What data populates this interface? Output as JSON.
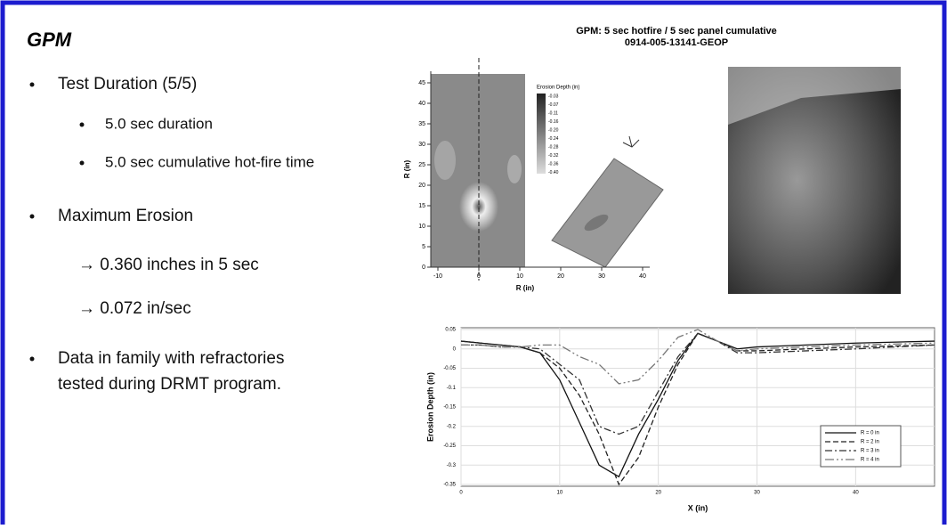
{
  "slide": {
    "title": "GPM",
    "bullets": [
      {
        "text": "Test Duration (5/5)",
        "sub": [
          "5.0 sec duration",
          "5.0 sec cumulative hot-fire time"
        ]
      },
      {
        "text": "Maximum Erosion",
        "sub": [
          "→ 0.360 inches in 5 sec",
          "→ 0.072 in/sec"
        ]
      },
      {
        "text": "Data in family with refractories",
        "cont": "tested during DRMT program."
      }
    ]
  },
  "figure": {
    "title": "GPM: 5 sec hotfire / 5 sec panel cumulative",
    "subtitle": "0914-005-13141-GEOP",
    "contour": {
      "xlabel": "R (in)",
      "ylabel": "R (in)",
      "xticks": [
        -10,
        0,
        10,
        20,
        30,
        40
      ],
      "yticks": [
        0,
        5,
        10,
        15,
        20,
        25,
        30,
        35,
        40,
        45
      ],
      "colorbar_title": "Erosion Depth (in)",
      "colorbar_labels": [
        "-0.03",
        "-0.07",
        "-0.11",
        "-0.16",
        "-0.20",
        "-0.24",
        "-0.28",
        "-0.32",
        "-0.36",
        "-0.40"
      ]
    }
  },
  "chart_data": {
    "type": "line",
    "xlabel": "X (in)",
    "ylabel": "Erosion Depth (in)",
    "x": [
      0,
      2,
      4,
      6,
      8,
      10,
      12,
      14,
      16,
      18,
      20,
      22,
      24,
      26,
      28,
      30,
      35,
      40,
      48
    ],
    "xlim": [
      0,
      48
    ],
    "xticks": [
      0,
      10,
      20,
      30,
      40
    ],
    "ylim": [
      -0.35,
      0.05
    ],
    "yticks": [
      0.05,
      0,
      -0.05,
      -0.1,
      -0.15,
      -0.2,
      -0.25,
      -0.3,
      -0.35
    ],
    "legend": "lower right",
    "grid": true,
    "series": [
      {
        "name": "R = 0 in",
        "color": "#111111",
        "dash": "none",
        "values": [
          0.02,
          0.015,
          0.01,
          0.005,
          -0.01,
          -0.08,
          -0.19,
          -0.3,
          -0.33,
          -0.22,
          -0.13,
          -0.03,
          0.04,
          0.02,
          0,
          0.005,
          0.01,
          0.015,
          0.02
        ]
      },
      {
        "name": "R = 2 in",
        "color": "#222222",
        "dash": "6 3",
        "values": [
          0.02,
          0.015,
          0.01,
          0.005,
          -0.01,
          -0.05,
          -0.12,
          -0.22,
          -0.35,
          -0.28,
          -0.15,
          -0.04,
          0.04,
          0.02,
          -0.005,
          -0.005,
          0,
          0.005,
          0.01
        ]
      },
      {
        "name": "R = 3 in",
        "color": "#333333",
        "dash": "8 3 2 3",
        "values": [
          0.01,
          0.01,
          0.005,
          0.005,
          0,
          -0.04,
          -0.08,
          -0.2,
          -0.22,
          -0.2,
          -0.11,
          -0.02,
          0.04,
          0.02,
          -0.01,
          -0.01,
          -0.005,
          0,
          0.01
        ]
      },
      {
        "name": "R = 4 in",
        "color": "#777777",
        "dash": "10 3 2 3 2 3",
        "values": [
          0.01,
          0.01,
          0.005,
          0.005,
          0.01,
          0.01,
          -0.02,
          -0.04,
          -0.09,
          -0.08,
          -0.03,
          0.03,
          0.05,
          0.02,
          -0.005,
          0,
          0.005,
          0.01,
          0.015
        ]
      }
    ]
  }
}
